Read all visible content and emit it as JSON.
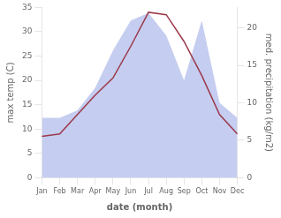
{
  "chart_data": {
    "type": "line",
    "xlabel": "date (month)",
    "ylabel": "max temp (C)",
    "y2label": "med. precipitation (kg/m2)",
    "categories": [
      "Jan",
      "Feb",
      "Mar",
      "Apr",
      "May",
      "Jun",
      "Jul",
      "Aug",
      "Sep",
      "Oct",
      "Nov",
      "Dec"
    ],
    "series": [
      {
        "type": "area",
        "axis": "y2",
        "color": "#c5cdf0",
        "values": [
          8.0,
          8.0,
          9.0,
          12.0,
          17.0,
          21.0,
          22.0,
          19.0,
          13.0,
          21.0,
          10.0,
          8.0
        ]
      },
      {
        "type": "line",
        "color": "#9b3a4a",
        "values": [
          8.5,
          9.0,
          13.0,
          17.0,
          20.5,
          27.0,
          34.0,
          33.5,
          28.0,
          21.0,
          13.0,
          9.0
        ]
      }
    ],
    "ylim": [
      0,
      35
    ],
    "yticks": [
      0,
      5,
      10,
      15,
      20,
      25,
      30,
      35
    ],
    "y2lim": [
      0,
      22.75
    ],
    "y2ticks": [
      0,
      5,
      10,
      15,
      20
    ],
    "grid": false
  }
}
